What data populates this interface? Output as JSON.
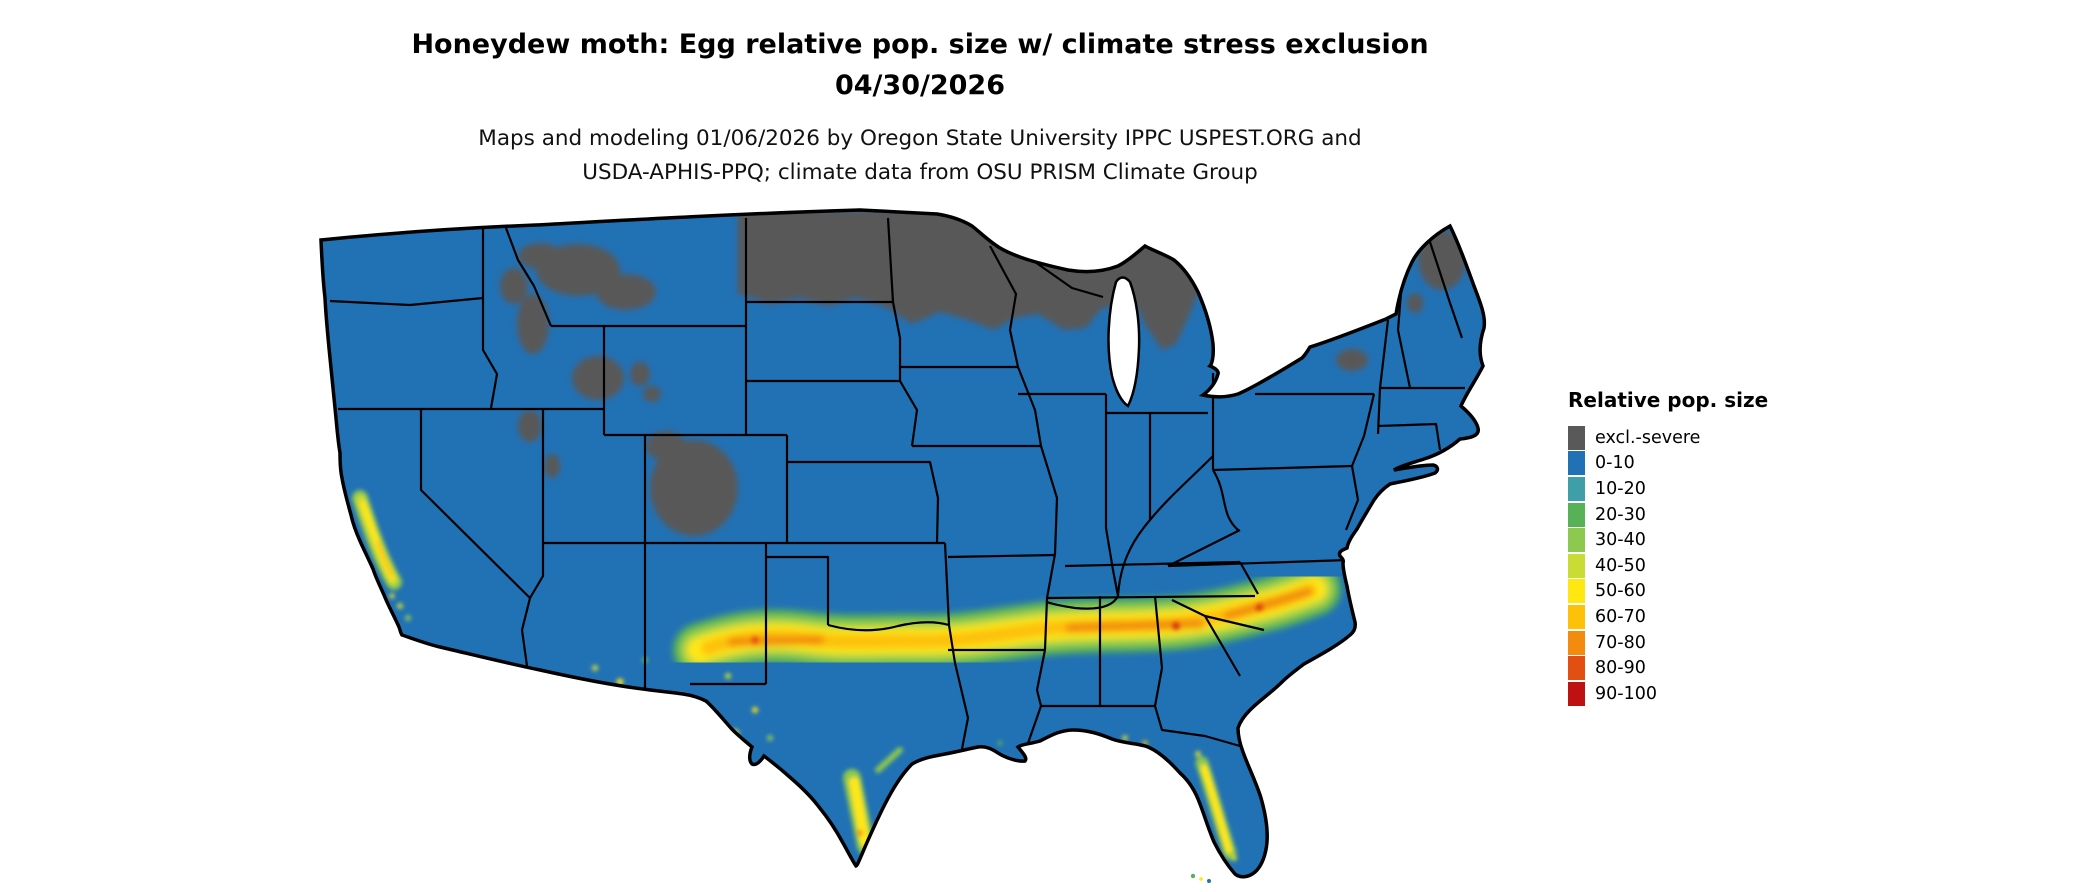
{
  "title": {
    "line1": "Honeydew moth: Egg relative pop. size w/ climate stress exclusion",
    "line2": "04/30/2026"
  },
  "subtitle": {
    "line1": "Maps and modeling 01/06/2026 by Oregon State University IPPC USPEST.ORG and",
    "line2": "USDA-APHIS-PPQ; climate data from OSU PRISM Climate Group"
  },
  "legend": {
    "title": "Relative pop. size",
    "items": [
      {
        "label": "excl.-severe",
        "color": "#595959"
      },
      {
        "label": "0-10",
        "color": "#2171b5"
      },
      {
        "label": "10-20",
        "color": "#3f9fa8"
      },
      {
        "label": "20-30",
        "color": "#57b257"
      },
      {
        "label": "30-40",
        "color": "#8dc84f"
      },
      {
        "label": "40-50",
        "color": "#c9dc36"
      },
      {
        "label": "50-60",
        "color": "#ffe712"
      },
      {
        "label": "60-70",
        "color": "#fdc10a"
      },
      {
        "label": "70-80",
        "color": "#f28b0e"
      },
      {
        "label": "80-90",
        "color": "#e14f11"
      },
      {
        "label": "90-100",
        "color": "#bf1111"
      }
    ]
  },
  "map": {
    "region_label": "Continental United States",
    "outline_color": "#000000",
    "water_color": "#ffffff"
  }
}
